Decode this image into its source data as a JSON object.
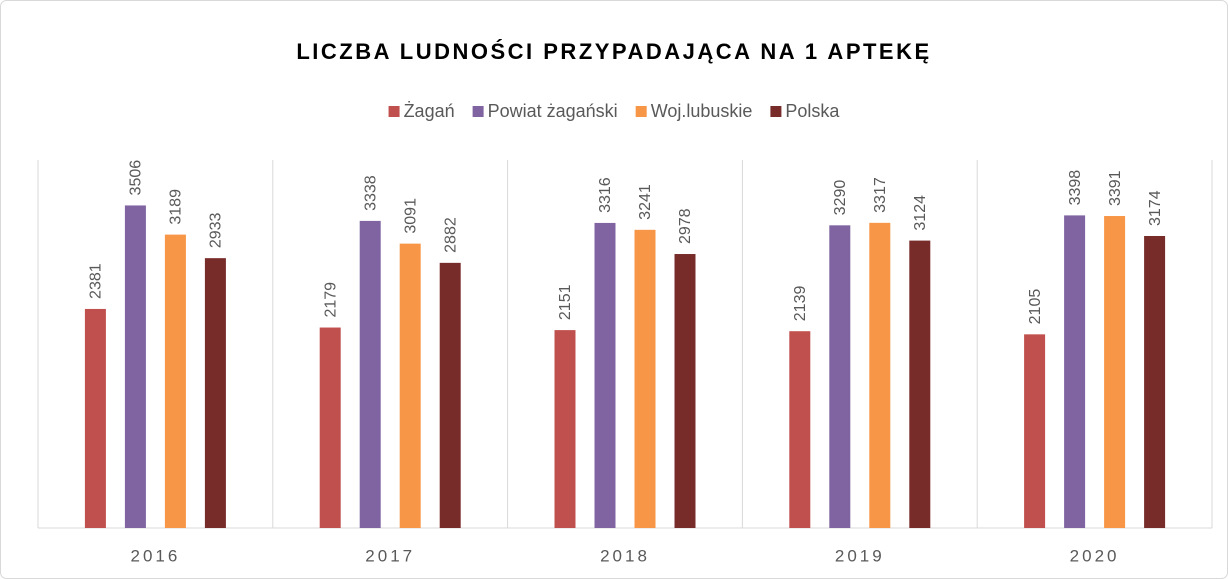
{
  "chart_data": {
    "type": "bar",
    "title": "LICZBA LUDNOŚCI PRZYPADAJĄCA NA 1 APTEKĘ",
    "categories": [
      "2016",
      "2017",
      "2018",
      "2019",
      "2020"
    ],
    "series": [
      {
        "name": "Żagań",
        "color": "#c0504d",
        "values": [
          2381,
          2179,
          2151,
          2139,
          2105
        ]
      },
      {
        "name": "Powiat żagański",
        "color": "#8064a2",
        "values": [
          3506,
          3338,
          3316,
          3290,
          3398
        ]
      },
      {
        "name": "Woj.lubuskie",
        "color": "#f79646",
        "values": [
          3189,
          3091,
          3241,
          3317,
          3391
        ]
      },
      {
        "name": "Polska",
        "color": "#772c2a",
        "values": [
          2933,
          2882,
          2978,
          3124,
          3174
        ]
      }
    ],
    "ylim": [
      0,
      4000
    ],
    "legend": "top"
  }
}
